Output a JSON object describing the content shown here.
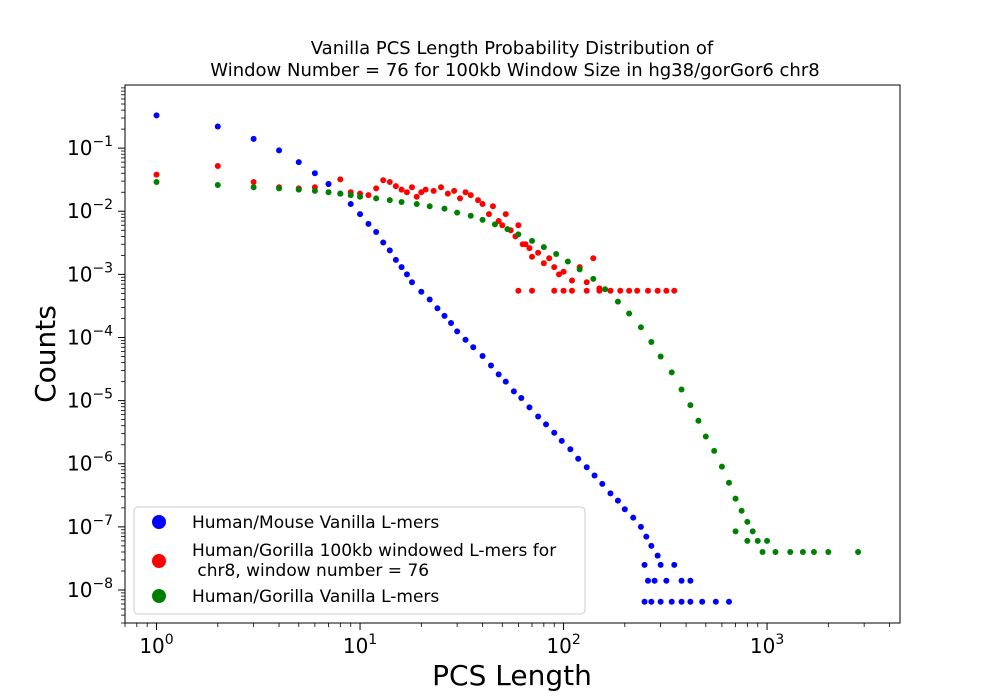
{
  "chart_data": {
    "type": "scatter",
    "title": [
      "Vanilla PCS Length Probability Distribution of",
      "Window Number = 76 for 100kb Window Size in hg38/gorGor6 chr8"
    ],
    "xlabel": "PCS Length",
    "ylabel": "Counts",
    "xscale": "log",
    "yscale": "log",
    "xlim": [
      0.7,
      4500
    ],
    "ylim": [
      3e-09,
      1.0
    ],
    "x_ticks": [
      {
        "value": 1,
        "base": "10",
        "exp": "0"
      },
      {
        "value": 10,
        "base": "10",
        "exp": "1"
      },
      {
        "value": 100,
        "base": "10",
        "exp": "2"
      },
      {
        "value": 1000,
        "base": "10",
        "exp": "3"
      }
    ],
    "y_ticks": [
      {
        "value": 1e-08,
        "base": "10",
        "exp": "−8"
      },
      {
        "value": 1e-07,
        "base": "10",
        "exp": "−7"
      },
      {
        "value": 1e-06,
        "base": "10",
        "exp": "−6"
      },
      {
        "value": 1e-05,
        "base": "10",
        "exp": "−5"
      },
      {
        "value": 0.0001,
        "base": "10",
        "exp": "−4"
      },
      {
        "value": 0.001,
        "base": "10",
        "exp": "−3"
      },
      {
        "value": 0.01,
        "base": "10",
        "exp": "−2"
      },
      {
        "value": 0.1,
        "base": "10",
        "exp": "−1"
      }
    ],
    "legend_position": "lower-left",
    "series": [
      {
        "name": "Human/Mouse Vanilla L-mers",
        "color": "#0000ff",
        "points": [
          [
            1,
            0.33
          ],
          [
            2,
            0.22
          ],
          [
            3,
            0.14
          ],
          [
            4,
            0.092
          ],
          [
            5,
            0.06
          ],
          [
            6,
            0.04
          ],
          [
            7,
            0.027
          ],
          [
            8,
            0.019
          ],
          [
            9,
            0.013
          ],
          [
            10,
            0.009
          ],
          [
            11,
            0.0063
          ],
          [
            12,
            0.0047
          ],
          [
            13,
            0.0032
          ],
          [
            14,
            0.0024
          ],
          [
            15,
            0.0017
          ],
          [
            16,
            0.0013
          ],
          [
            17,
            0.001
          ],
          [
            18,
            0.00075
          ],
          [
            20,
            0.00053
          ],
          [
            22,
            0.0004
          ],
          [
            24,
            0.00029
          ],
          [
            26,
            0.00022
          ],
          [
            28,
            0.00017
          ],
          [
            30,
            0.000125
          ],
          [
            33,
            9.2e-05
          ],
          [
            36,
            7e-05
          ],
          [
            40,
            5.1e-05
          ],
          [
            44,
            3.6e-05
          ],
          [
            48,
            2.6e-05
          ],
          [
            52,
            2e-05
          ],
          [
            57,
            1.4e-05
          ],
          [
            62,
            1.1e-05
          ],
          [
            68,
            7.8e-06
          ],
          [
            75,
            5.6e-06
          ],
          [
            82,
            4.2e-06
          ],
          [
            90,
            3.1e-06
          ],
          [
            98,
            2.3e-06
          ],
          [
            108,
            1.7e-06
          ],
          [
            118,
            1.2e-06
          ],
          [
            130,
            8.8e-07
          ],
          [
            142,
            6.5e-07
          ],
          [
            155,
            4.8e-07
          ],
          [
            170,
            3.4e-07
          ],
          [
            185,
            2.6e-07
          ],
          [
            200,
            1.9e-07
          ],
          [
            220,
            1.4e-07
          ],
          [
            240,
            1e-07
          ],
          [
            255,
            7e-08
          ],
          [
            270,
            5e-08
          ],
          [
            290,
            3.5e-08
          ],
          [
            250,
            2.5e-08
          ],
          [
            300,
            2.5e-08
          ],
          [
            350,
            2.5e-08
          ],
          [
            260,
            1.4e-08
          ],
          [
            280,
            1.4e-08
          ],
          [
            320,
            1.4e-08
          ],
          [
            380,
            1.4e-08
          ],
          [
            420,
            1.4e-08
          ],
          [
            250,
            6.5e-09
          ],
          [
            270,
            6.5e-09
          ],
          [
            300,
            6.5e-09
          ],
          [
            340,
            6.5e-09
          ],
          [
            380,
            6.5e-09
          ],
          [
            420,
            6.5e-09
          ],
          [
            480,
            6.5e-09
          ],
          [
            560,
            6.5e-09
          ],
          [
            650,
            6.5e-09
          ]
        ]
      },
      {
        "name": "Human/Gorilla 100kb windowed L-mers for\n chr8, window number = 76",
        "color": "#ff0000",
        "points": [
          [
            1,
            0.038
          ],
          [
            2,
            0.052
          ],
          [
            3,
            0.029
          ],
          [
            4,
            0.024
          ],
          [
            5,
            0.023
          ],
          [
            6,
            0.024
          ],
          [
            7,
            0.027
          ],
          [
            8,
            0.032
          ],
          [
            9,
            0.02
          ],
          [
            10,
            0.019
          ],
          [
            11,
            0.018
          ],
          [
            12,
            0.023
          ],
          [
            13,
            0.031
          ],
          [
            14,
            0.029
          ],
          [
            15,
            0.025
          ],
          [
            16,
            0.022
          ],
          [
            17,
            0.02
          ],
          [
            18,
            0.024
          ],
          [
            19,
            0.017
          ],
          [
            20,
            0.02
          ],
          [
            21,
            0.022
          ],
          [
            23,
            0.021
          ],
          [
            25,
            0.024
          ],
          [
            27,
            0.019
          ],
          [
            29,
            0.021
          ],
          [
            31,
            0.016
          ],
          [
            33,
            0.02
          ],
          [
            35,
            0.018
          ],
          [
            38,
            0.015
          ],
          [
            40,
            0.013
          ],
          [
            43,
            0.009
          ],
          [
            45,
            0.012
          ],
          [
            48,
            0.007
          ],
          [
            50,
            0.006
          ],
          [
            52,
            0.009
          ],
          [
            55,
            0.005
          ],
          [
            58,
            0.004
          ],
          [
            60,
            0.006
          ],
          [
            63,
            0.003
          ],
          [
            65,
            0.003
          ],
          [
            68,
            0.0026
          ],
          [
            70,
            0.0019
          ],
          [
            75,
            0.0022
          ],
          [
            80,
            0.0015
          ],
          [
            85,
            0.0018
          ],
          [
            90,
            0.0013
          ],
          [
            95,
            0.001
          ],
          [
            100,
            0.0011
          ],
          [
            110,
            0.0008
          ],
          [
            120,
            0.0013
          ],
          [
            130,
            0.00075
          ],
          [
            140,
            0.0018
          ],
          [
            150,
            0.0006
          ],
          [
            60,
            0.00055
          ],
          [
            70,
            0.00055
          ],
          [
            90,
            0.00055
          ],
          [
            100,
            0.00055
          ],
          [
            110,
            0.00055
          ],
          [
            130,
            0.00055
          ],
          [
            150,
            0.00055
          ],
          [
            170,
            0.00055
          ],
          [
            190,
            0.00055
          ],
          [
            210,
            0.00055
          ],
          [
            230,
            0.00055
          ],
          [
            260,
            0.00055
          ],
          [
            290,
            0.00055
          ],
          [
            320,
            0.00055
          ],
          [
            350,
            0.00055
          ]
        ]
      },
      {
        "name": "Human/Gorilla Vanilla L-mers",
        "color": "#008000",
        "points": [
          [
            1,
            0.029
          ],
          [
            2,
            0.026
          ],
          [
            3,
            0.024
          ],
          [
            4,
            0.023
          ],
          [
            5,
            0.022
          ],
          [
            6,
            0.021
          ],
          [
            7,
            0.02
          ],
          [
            8,
            0.019
          ],
          [
            9,
            0.018
          ],
          [
            10,
            0.017
          ],
          [
            12,
            0.016
          ],
          [
            14,
            0.015
          ],
          [
            16,
            0.014
          ],
          [
            19,
            0.013
          ],
          [
            22,
            0.012
          ],
          [
            26,
            0.011
          ],
          [
            30,
            0.0095
          ],
          [
            35,
            0.0085
          ],
          [
            40,
            0.0073
          ],
          [
            46,
            0.0062
          ],
          [
            53,
            0.0052
          ],
          [
            60,
            0.0043
          ],
          [
            70,
            0.0034
          ],
          [
            80,
            0.0027
          ],
          [
            92,
            0.0021
          ],
          [
            105,
            0.0016
          ],
          [
            120,
            0.0012
          ],
          [
            140,
            0.00085
          ],
          [
            160,
            0.00058
          ],
          [
            185,
            0.00037
          ],
          [
            210,
            0.00024
          ],
          [
            240,
            0.000145
          ],
          [
            270,
            8.5e-05
          ],
          [
            300,
            5e-05
          ],
          [
            340,
            2.8e-05
          ],
          [
            380,
            1.5e-05
          ],
          [
            420,
            8.5e-06
          ],
          [
            460,
            4.8e-06
          ],
          [
            500,
            2.7e-06
          ],
          [
            550,
            1.6e-06
          ],
          [
            600,
            9e-07
          ],
          [
            650,
            5e-07
          ],
          [
            700,
            2.8e-07
          ],
          [
            750,
            1.8e-07
          ],
          [
            800,
            1.2e-07
          ],
          [
            850,
            8.5e-08
          ],
          [
            700,
            8.5e-08
          ],
          [
            800,
            6e-08
          ],
          [
            900,
            6e-08
          ],
          [
            1000,
            6e-08
          ],
          [
            950,
            4e-08
          ],
          [
            1100,
            4e-08
          ],
          [
            1300,
            4e-08
          ],
          [
            1500,
            4e-08
          ],
          [
            1700,
            4e-08
          ],
          [
            2000,
            4e-08
          ],
          [
            2800,
            4e-08
          ]
        ]
      }
    ]
  }
}
